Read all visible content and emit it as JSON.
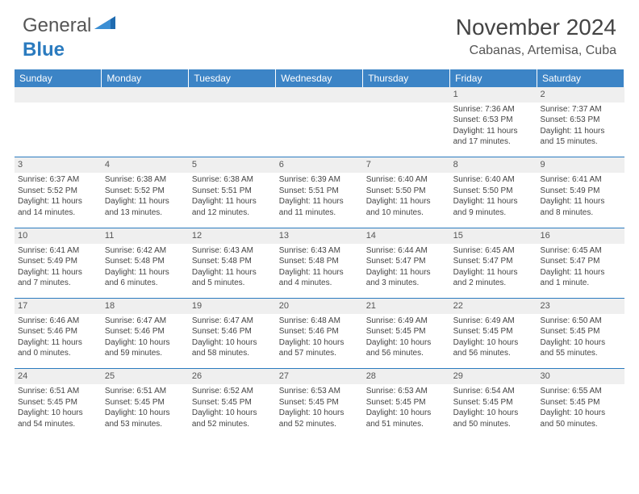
{
  "logo": {
    "text_general": "General",
    "text_blue": "Blue"
  },
  "colors": {
    "header_bg": "#3c84c6",
    "border": "#2b7bbf",
    "daynum_bg": "#efefef",
    "text": "#444444",
    "logo_gray": "#555555",
    "logo_blue": "#2b7bbf",
    "page_bg": "#ffffff"
  },
  "title": "November 2024",
  "location": "Cabanas, Artemisa, Cuba",
  "weekdays": [
    "Sunday",
    "Monday",
    "Tuesday",
    "Wednesday",
    "Thursday",
    "Friday",
    "Saturday"
  ],
  "weeks": [
    [
      null,
      null,
      null,
      null,
      null,
      {
        "n": "1",
        "sr": "Sunrise: 7:36 AM",
        "ss": "Sunset: 6:53 PM",
        "dl1": "Daylight: 11 hours",
        "dl2": "and 17 minutes."
      },
      {
        "n": "2",
        "sr": "Sunrise: 7:37 AM",
        "ss": "Sunset: 6:53 PM",
        "dl1": "Daylight: 11 hours",
        "dl2": "and 15 minutes."
      }
    ],
    [
      {
        "n": "3",
        "sr": "Sunrise: 6:37 AM",
        "ss": "Sunset: 5:52 PM",
        "dl1": "Daylight: 11 hours",
        "dl2": "and 14 minutes."
      },
      {
        "n": "4",
        "sr": "Sunrise: 6:38 AM",
        "ss": "Sunset: 5:52 PM",
        "dl1": "Daylight: 11 hours",
        "dl2": "and 13 minutes."
      },
      {
        "n": "5",
        "sr": "Sunrise: 6:38 AM",
        "ss": "Sunset: 5:51 PM",
        "dl1": "Daylight: 11 hours",
        "dl2": "and 12 minutes."
      },
      {
        "n": "6",
        "sr": "Sunrise: 6:39 AM",
        "ss": "Sunset: 5:51 PM",
        "dl1": "Daylight: 11 hours",
        "dl2": "and 11 minutes."
      },
      {
        "n": "7",
        "sr": "Sunrise: 6:40 AM",
        "ss": "Sunset: 5:50 PM",
        "dl1": "Daylight: 11 hours",
        "dl2": "and 10 minutes."
      },
      {
        "n": "8",
        "sr": "Sunrise: 6:40 AM",
        "ss": "Sunset: 5:50 PM",
        "dl1": "Daylight: 11 hours",
        "dl2": "and 9 minutes."
      },
      {
        "n": "9",
        "sr": "Sunrise: 6:41 AM",
        "ss": "Sunset: 5:49 PM",
        "dl1": "Daylight: 11 hours",
        "dl2": "and 8 minutes."
      }
    ],
    [
      {
        "n": "10",
        "sr": "Sunrise: 6:41 AM",
        "ss": "Sunset: 5:49 PM",
        "dl1": "Daylight: 11 hours",
        "dl2": "and 7 minutes."
      },
      {
        "n": "11",
        "sr": "Sunrise: 6:42 AM",
        "ss": "Sunset: 5:48 PM",
        "dl1": "Daylight: 11 hours",
        "dl2": "and 6 minutes."
      },
      {
        "n": "12",
        "sr": "Sunrise: 6:43 AM",
        "ss": "Sunset: 5:48 PM",
        "dl1": "Daylight: 11 hours",
        "dl2": "and 5 minutes."
      },
      {
        "n": "13",
        "sr": "Sunrise: 6:43 AM",
        "ss": "Sunset: 5:48 PM",
        "dl1": "Daylight: 11 hours",
        "dl2": "and 4 minutes."
      },
      {
        "n": "14",
        "sr": "Sunrise: 6:44 AM",
        "ss": "Sunset: 5:47 PM",
        "dl1": "Daylight: 11 hours",
        "dl2": "and 3 minutes."
      },
      {
        "n": "15",
        "sr": "Sunrise: 6:45 AM",
        "ss": "Sunset: 5:47 PM",
        "dl1": "Daylight: 11 hours",
        "dl2": "and 2 minutes."
      },
      {
        "n": "16",
        "sr": "Sunrise: 6:45 AM",
        "ss": "Sunset: 5:47 PM",
        "dl1": "Daylight: 11 hours",
        "dl2": "and 1 minute."
      }
    ],
    [
      {
        "n": "17",
        "sr": "Sunrise: 6:46 AM",
        "ss": "Sunset: 5:46 PM",
        "dl1": "Daylight: 11 hours",
        "dl2": "and 0 minutes."
      },
      {
        "n": "18",
        "sr": "Sunrise: 6:47 AM",
        "ss": "Sunset: 5:46 PM",
        "dl1": "Daylight: 10 hours",
        "dl2": "and 59 minutes."
      },
      {
        "n": "19",
        "sr": "Sunrise: 6:47 AM",
        "ss": "Sunset: 5:46 PM",
        "dl1": "Daylight: 10 hours",
        "dl2": "and 58 minutes."
      },
      {
        "n": "20",
        "sr": "Sunrise: 6:48 AM",
        "ss": "Sunset: 5:46 PM",
        "dl1": "Daylight: 10 hours",
        "dl2": "and 57 minutes."
      },
      {
        "n": "21",
        "sr": "Sunrise: 6:49 AM",
        "ss": "Sunset: 5:45 PM",
        "dl1": "Daylight: 10 hours",
        "dl2": "and 56 minutes."
      },
      {
        "n": "22",
        "sr": "Sunrise: 6:49 AM",
        "ss": "Sunset: 5:45 PM",
        "dl1": "Daylight: 10 hours",
        "dl2": "and 56 minutes."
      },
      {
        "n": "23",
        "sr": "Sunrise: 6:50 AM",
        "ss": "Sunset: 5:45 PM",
        "dl1": "Daylight: 10 hours",
        "dl2": "and 55 minutes."
      }
    ],
    [
      {
        "n": "24",
        "sr": "Sunrise: 6:51 AM",
        "ss": "Sunset: 5:45 PM",
        "dl1": "Daylight: 10 hours",
        "dl2": "and 54 minutes."
      },
      {
        "n": "25",
        "sr": "Sunrise: 6:51 AM",
        "ss": "Sunset: 5:45 PM",
        "dl1": "Daylight: 10 hours",
        "dl2": "and 53 minutes."
      },
      {
        "n": "26",
        "sr": "Sunrise: 6:52 AM",
        "ss": "Sunset: 5:45 PM",
        "dl1": "Daylight: 10 hours",
        "dl2": "and 52 minutes."
      },
      {
        "n": "27",
        "sr": "Sunrise: 6:53 AM",
        "ss": "Sunset: 5:45 PM",
        "dl1": "Daylight: 10 hours",
        "dl2": "and 52 minutes."
      },
      {
        "n": "28",
        "sr": "Sunrise: 6:53 AM",
        "ss": "Sunset: 5:45 PM",
        "dl1": "Daylight: 10 hours",
        "dl2": "and 51 minutes."
      },
      {
        "n": "29",
        "sr": "Sunrise: 6:54 AM",
        "ss": "Sunset: 5:45 PM",
        "dl1": "Daylight: 10 hours",
        "dl2": "and 50 minutes."
      },
      {
        "n": "30",
        "sr": "Sunrise: 6:55 AM",
        "ss": "Sunset: 5:45 PM",
        "dl1": "Daylight: 10 hours",
        "dl2": "and 50 minutes."
      }
    ]
  ]
}
